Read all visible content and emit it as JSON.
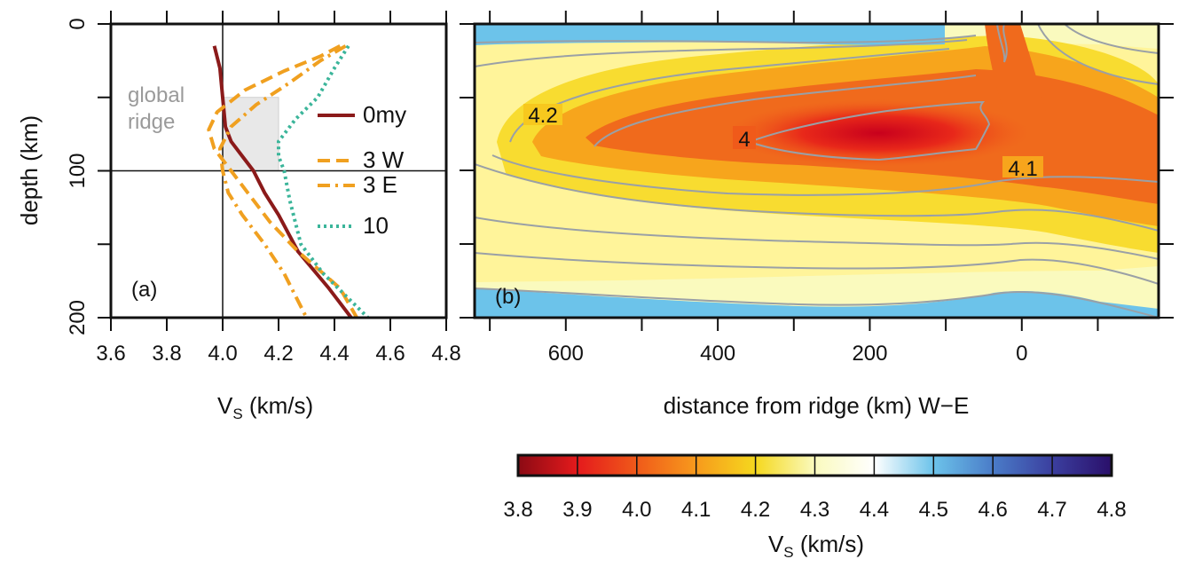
{
  "chart_data": [
    {
      "id": "a",
      "type": "line",
      "panel_label": "(a)",
      "xlabel_main": "V",
      "xlabel_sub": "S",
      "xlabel_tail": " (km/s)",
      "ylabel": "depth (km)",
      "xlim": [
        3.6,
        4.8
      ],
      "ylim": [
        0,
        200
      ],
      "y_inverted": true,
      "x_ticks": [
        "3.6",
        "3.8",
        "4.0",
        "4.2",
        "4.4",
        "4.6",
        "4.8"
      ],
      "y_ticks": [
        "0",
        "100",
        "200"
      ],
      "reference_lines": {
        "x": 4.0,
        "y": 100
      },
      "shaded_box": {
        "label_line1": "global",
        "label_line2": "ridge",
        "x": [
          4.0,
          4.2
        ],
        "y": [
          50,
          100
        ],
        "color": "#e8e8e8"
      },
      "series": [
        {
          "name": "0my",
          "style": "solid",
          "color": "#8b1a1a",
          "x": [
            3.97,
            3.99,
            4.0,
            4.01,
            4.03,
            4.07,
            4.11,
            4.15,
            4.2,
            4.27,
            4.38,
            4.46
          ],
          "y": [
            15,
            30,
            50,
            70,
            80,
            90,
            100,
            115,
            130,
            155,
            180,
            200
          ]
        },
        {
          "name": "3 W",
          "style": "dashed",
          "color": "#f0a020",
          "x": [
            4.42,
            4.35,
            4.22,
            4.08,
            3.98,
            3.95,
            3.97,
            4.03,
            4.09,
            4.17,
            4.27,
            4.42,
            4.48
          ],
          "y": [
            15,
            22,
            32,
            45,
            60,
            72,
            85,
            100,
            115,
            135,
            155,
            180,
            200
          ]
        },
        {
          "name": "3 E",
          "style": "dashdot",
          "color": "#f0a020",
          "x": [
            4.44,
            4.35,
            4.24,
            4.12,
            4.03,
            3.99,
            4.0,
            4.02,
            4.07,
            4.15,
            4.22,
            4.3
          ],
          "y": [
            15,
            25,
            40,
            55,
            70,
            85,
            100,
            115,
            130,
            150,
            170,
            200
          ]
        },
        {
          "name": "10",
          "style": "dotted",
          "color": "#3bb59a",
          "x": [
            4.45,
            4.4,
            4.34,
            4.26,
            4.2,
            4.2,
            4.22,
            4.24,
            4.28,
            4.36,
            4.44,
            4.52
          ],
          "y": [
            15,
            30,
            50,
            65,
            80,
            90,
            100,
            120,
            150,
            170,
            185,
            200
          ]
        }
      ]
    },
    {
      "id": "b",
      "type": "heatmap",
      "panel_label": "(b)",
      "xlabel": "distance from ridge (km) W−E",
      "xlim": [
        720,
        -180
      ],
      "ylim": [
        0,
        200
      ],
      "x_ticks": [
        "600",
        "400",
        "200",
        "0"
      ],
      "contour_labels": [
        "4.2",
        "4",
        "4.1"
      ]
    },
    {
      "id": "colorbar",
      "type": "heatmap",
      "role": "colorbar",
      "xlabel_main": "V",
      "xlabel_sub": "S",
      "xlabel_tail": " (km/s)",
      "range": [
        3.8,
        4.8
      ],
      "ticks": [
        "3.8",
        "3.9",
        "4.0",
        "4.1",
        "4.2",
        "4.3",
        "4.4",
        "4.5",
        "4.6",
        "4.7",
        "4.8"
      ],
      "colors": [
        "#8b0a14",
        "#e41a1c",
        "#f05a1a",
        "#f79a1c",
        "#f5d81e",
        "#fafabe",
        "#ffffff",
        "#6cc3ea",
        "#4a7cc8",
        "#3b3f9f",
        "#2a0f6a"
      ]
    }
  ]
}
